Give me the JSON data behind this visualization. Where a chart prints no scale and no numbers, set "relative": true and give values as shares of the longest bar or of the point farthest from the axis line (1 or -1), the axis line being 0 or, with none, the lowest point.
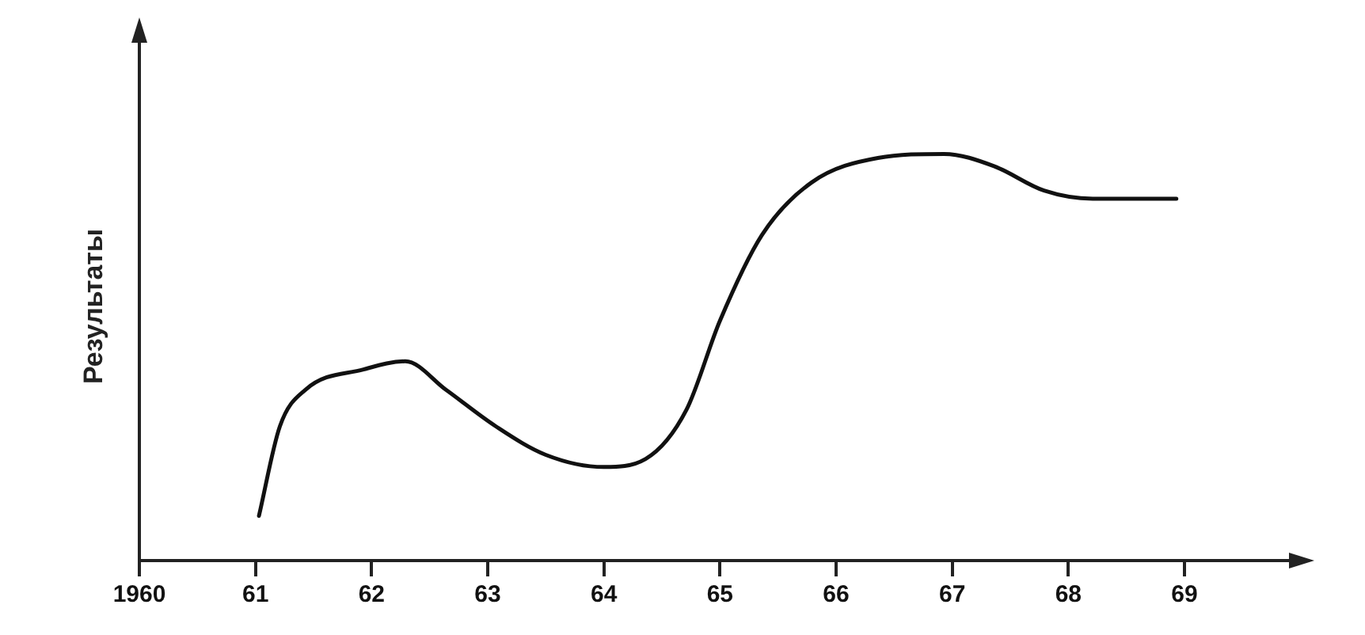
{
  "chart_data": {
    "type": "line",
    "relative": true,
    "ylabel": "Результаты",
    "color": "#111111",
    "marker": "none",
    "grid": false,
    "legend": false,
    "x": [
      1961.03,
      1961.21,
      1961.43,
      1961.93,
      1962.29,
      1962.64,
      1963.07,
      1963.5,
      1964.0,
      1964.36,
      1964.71,
      1965.0,
      1965.36,
      1965.79,
      1966.36,
      1966.93,
      1967.36,
      1967.79,
      1968.21,
      1968.93
    ],
    "values": [
      0.11,
      0.33,
      0.42,
      0.47,
      0.49,
      0.42,
      0.33,
      0.26,
      0.23,
      0.25,
      0.37,
      0.59,
      0.8,
      0.93,
      0.99,
      1,
      0.97,
      0.91,
      0.89,
      0.89
    ],
    "xlim": [
      1960,
      1969.9
    ],
    "xticks": [
      {
        "value": 1960,
        "label": "1960"
      },
      {
        "value": 1961,
        "label": "61"
      },
      {
        "value": 1962,
        "label": "62"
      },
      {
        "value": 1963,
        "label": "63"
      },
      {
        "value": 1964,
        "label": "64"
      },
      {
        "value": 1965,
        "label": "65"
      },
      {
        "value": 1966,
        "label": "66"
      },
      {
        "value": 1967,
        "label": "67"
      },
      {
        "value": 1968,
        "label": "68"
      },
      {
        "value": 1969,
        "label": "69"
      }
    ]
  }
}
